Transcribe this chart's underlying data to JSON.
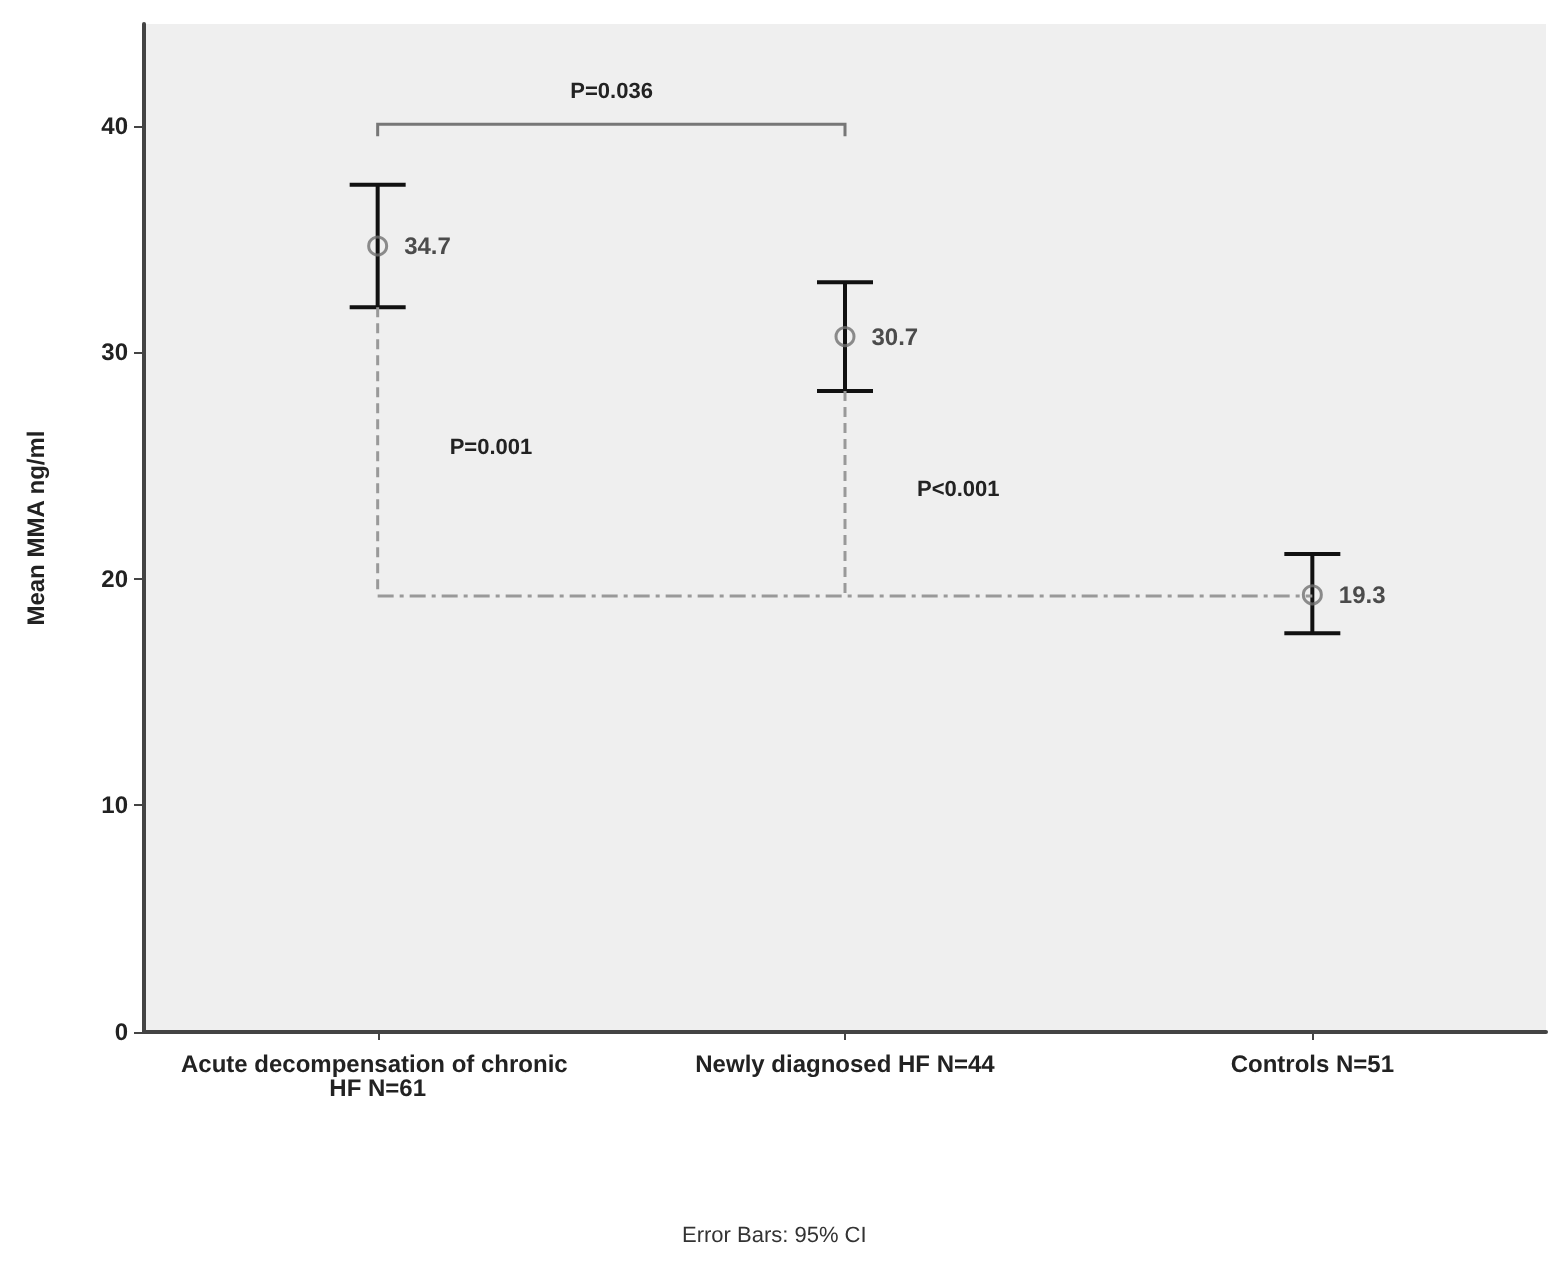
{
  "chart_data": {
    "type": "scatter",
    "ylabel": "Mean MMA ng/ml",
    "categories": [
      "Acute decompensation of chronic HF N=61",
      "Newly diagnosed HF N=44",
      "Controls N=51"
    ],
    "series": [
      {
        "color": "#707070",
        "values": [
          34.7,
          30.7,
          19.3
        ],
        "errors": [
          [
            32.0,
            37.4
          ],
          [
            28.3,
            33.1
          ],
          [
            17.6,
            21.1
          ]
        ]
      }
    ],
    "ref_lines": [
      {
        "axis": "y",
        "value": 19.3,
        "color": "#999999",
        "line_style": "dashed"
      }
    ],
    "ylim": [
      0,
      44.5
    ],
    "yticks": [
      0,
      10,
      20,
      30,
      40
    ],
    "grid": false,
    "marker": "circle",
    "data_labels": true,
    "annotations": [
      "P=0.036",
      "P=0.001",
      "P<0.001",
      "Error Bars: 95% CI"
    ]
  }
}
